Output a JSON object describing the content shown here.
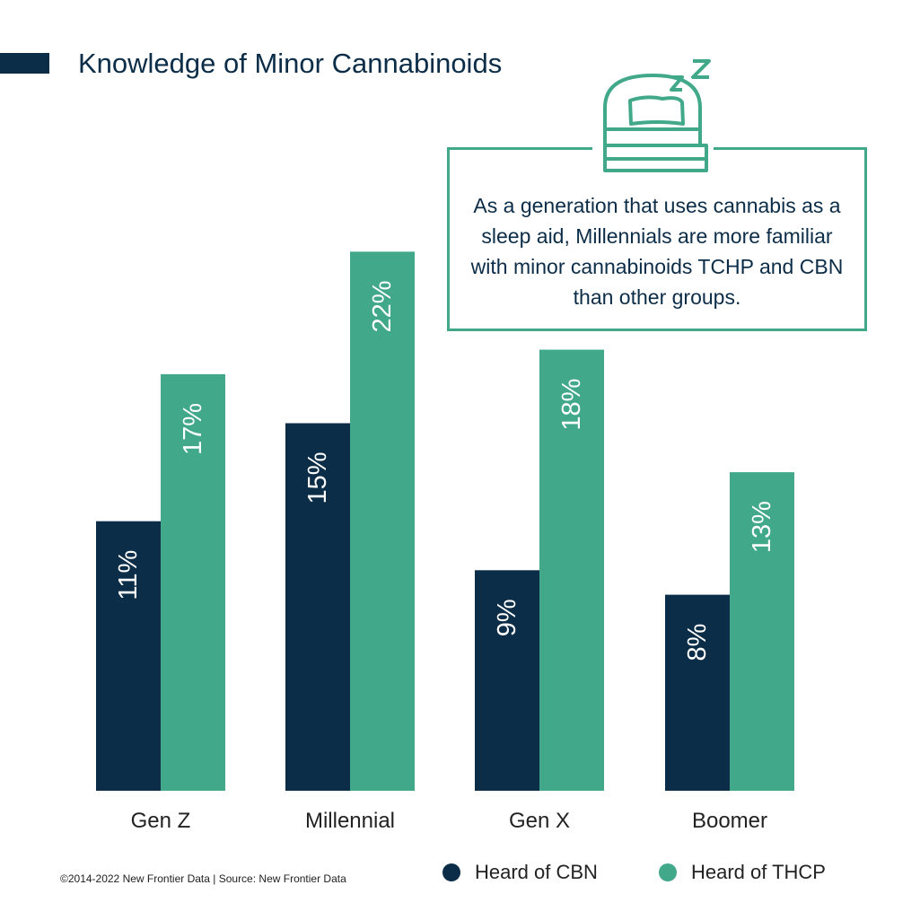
{
  "title": "Knowledge of Minor Cannabinoids",
  "callout": {
    "text": "As a generation that uses cannabis as a sleep aid, Millennials are more familiar with minor cannabinoids TCHP and CBN than other groups."
  },
  "icons": {
    "callout": "bed-sleep-icon"
  },
  "footer": "©2014-2022  New Frontier Data | Source: New Frontier Data",
  "colors": {
    "cbn": "#0c2d48",
    "thcp": "#41a98a",
    "text": "#222222"
  },
  "legend": [
    {
      "label": "Heard of CBN",
      "color": "#0c2d48"
    },
    {
      "label": "Heard of THCP",
      "color": "#41a98a"
    }
  ],
  "chart_data": {
    "type": "bar",
    "categories": [
      "Gen Z",
      "Millennial",
      "Gen X",
      "Boomer"
    ],
    "series": [
      {
        "name": "Heard of CBN",
        "values": [
          11,
          15,
          9,
          8
        ],
        "labels": [
          "11%",
          "15%",
          "9%",
          "8%"
        ]
      },
      {
        "name": "Heard of THCP",
        "values": [
          17,
          22,
          18,
          13
        ],
        "labels": [
          "17%",
          "22%",
          "18%",
          "13%"
        ]
      }
    ],
    "title": "Knowledge of Minor Cannabinoids",
    "xlabel": "",
    "ylabel": "",
    "ylim": [
      0,
      24
    ],
    "grid": false,
    "legend_position": "bottom-right"
  }
}
